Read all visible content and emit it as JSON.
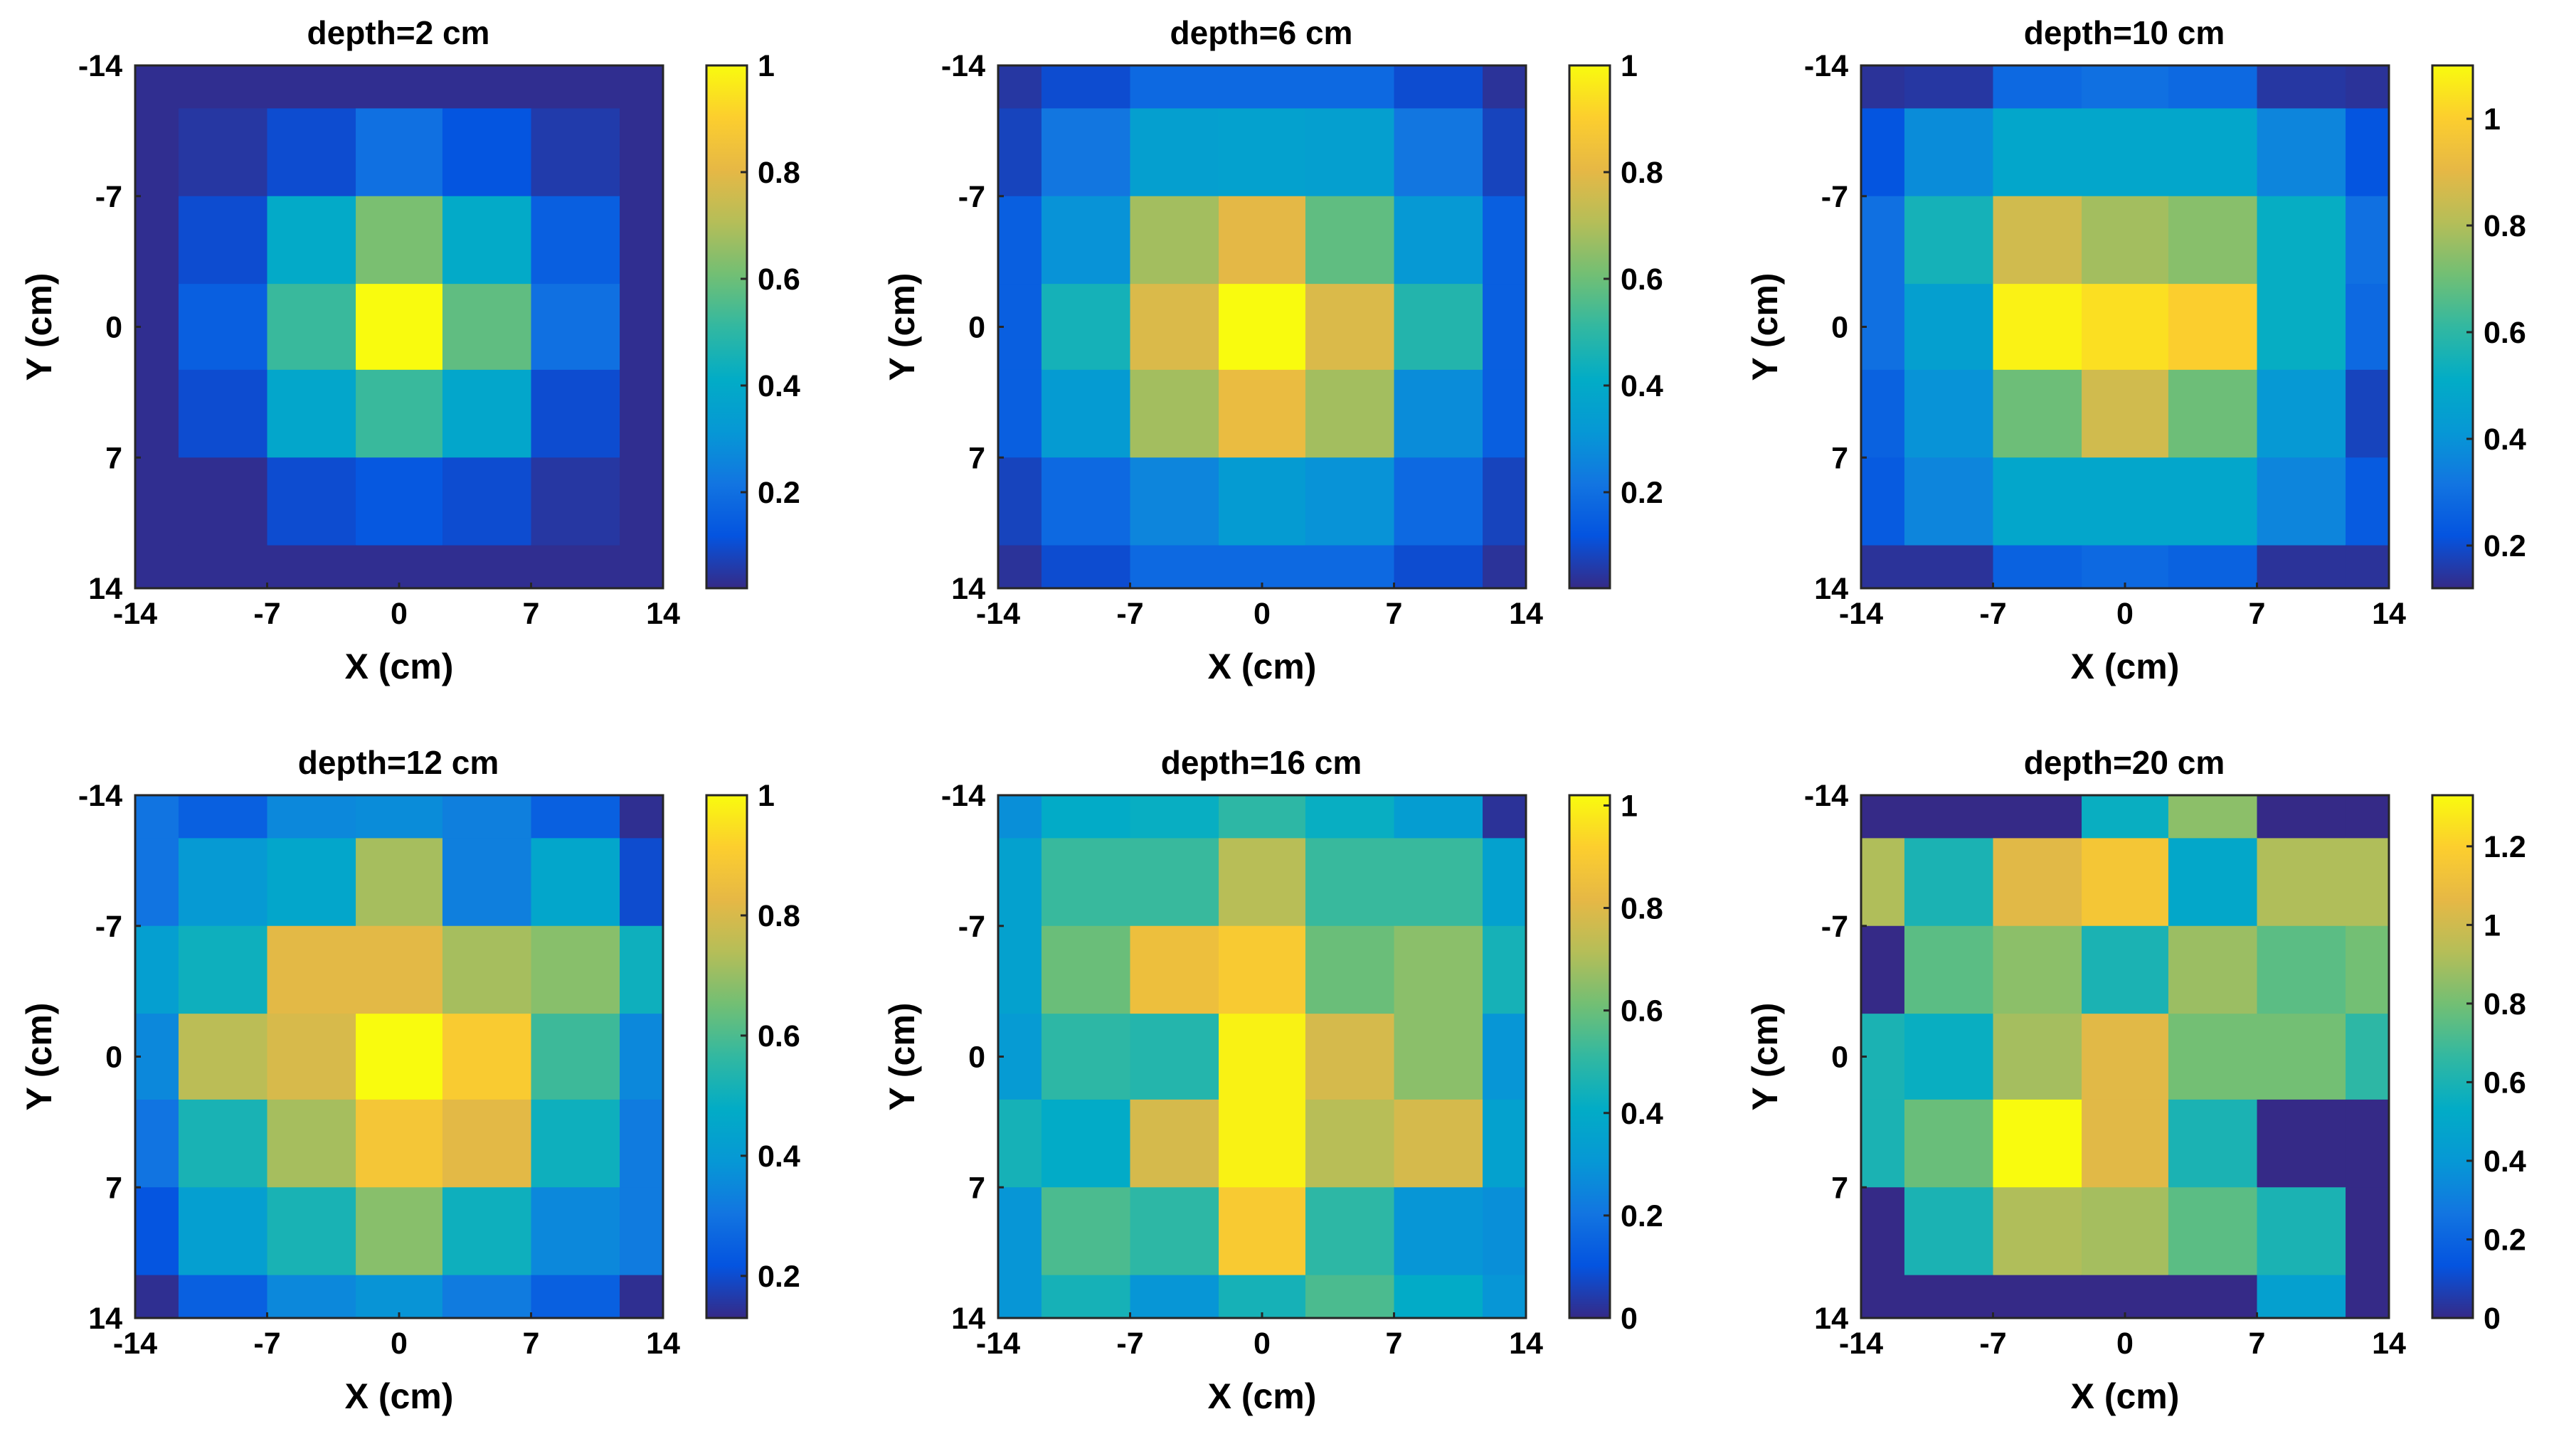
{
  "chart_data": [
    {
      "type": "heatmap",
      "title": "depth=2 cm",
      "xlabel": "X (cm)",
      "ylabel": "Y (cm)",
      "xlim": [
        -14,
        14
      ],
      "ylim": [
        -14,
        14
      ],
      "x_ticks": [
        "-14",
        "-7",
        "0",
        "7",
        "14"
      ],
      "y_ticks": [
        "-14",
        "-7",
        "0",
        "7",
        "14"
      ],
      "cell_edges": [
        -14,
        -11.7,
        -7,
        -2.3,
        2.3,
        7,
        11.7,
        14
      ],
      "colorbar": {
        "min": 0.02,
        "max": 1.0,
        "ticks": [
          0.2,
          0.4,
          0.6,
          0.8,
          1
        ],
        "tick_labels": [
          "0.2",
          "0.4",
          "0.6",
          "0.8",
          "1"
        ]
      },
      "values": [
        [
          0.03,
          0.03,
          0.03,
          0.03,
          0.03,
          0.03,
          0.03
        ],
        [
          0.03,
          0.05,
          0.1,
          0.2,
          0.12,
          0.06,
          0.03
        ],
        [
          0.03,
          0.1,
          0.4,
          0.62,
          0.4,
          0.15,
          0.03
        ],
        [
          0.03,
          0.15,
          0.52,
          1.0,
          0.58,
          0.2,
          0.03
        ],
        [
          0.03,
          0.1,
          0.38,
          0.52,
          0.38,
          0.1,
          0.03
        ],
        [
          0.03,
          0.03,
          0.1,
          0.13,
          0.1,
          0.05,
          0.03
        ],
        [
          0.03,
          0.03,
          0.03,
          0.03,
          0.03,
          0.03,
          0.03
        ]
      ]
    },
    {
      "type": "heatmap",
      "title": "depth=6 cm",
      "xlabel": "X (cm)",
      "ylabel": "Y (cm)",
      "xlim": [
        -14,
        14
      ],
      "ylim": [
        -14,
        14
      ],
      "x_ticks": [
        "-14",
        "-7",
        "0",
        "7",
        "14"
      ],
      "y_ticks": [
        "-14",
        "-7",
        "0",
        "7",
        "14"
      ],
      "cell_edges": [
        -14,
        -11.7,
        -7,
        -2.3,
        2.3,
        7,
        11.7,
        14
      ],
      "colorbar": {
        "min": 0.02,
        "max": 1.0,
        "ticks": [
          0.2,
          0.4,
          0.6,
          0.8,
          1
        ],
        "tick_labels": [
          "0.2",
          "0.4",
          "0.6",
          "0.8",
          "1"
        ]
      },
      "values": [
        [
          0.05,
          0.1,
          0.18,
          0.18,
          0.18,
          0.1,
          0.04
        ],
        [
          0.08,
          0.22,
          0.35,
          0.36,
          0.35,
          0.22,
          0.08
        ],
        [
          0.15,
          0.3,
          0.68,
          0.8,
          0.58,
          0.32,
          0.15
        ],
        [
          0.15,
          0.45,
          0.78,
          1.0,
          0.78,
          0.48,
          0.15
        ],
        [
          0.15,
          0.33,
          0.68,
          0.82,
          0.68,
          0.28,
          0.15
        ],
        [
          0.08,
          0.18,
          0.26,
          0.33,
          0.3,
          0.18,
          0.08
        ],
        [
          0.04,
          0.1,
          0.18,
          0.18,
          0.18,
          0.1,
          0.04
        ]
      ]
    },
    {
      "type": "heatmap",
      "title": "depth=10 cm",
      "xlabel": "X (cm)",
      "ylabel": "Y (cm)",
      "xlim": [
        -14,
        14
      ],
      "ylim": [
        -14,
        14
      ],
      "x_ticks": [
        "-14",
        "-7",
        "0",
        "7",
        "14"
      ],
      "y_ticks": [
        "-14",
        "-7",
        "0",
        "7",
        "14"
      ],
      "cell_edges": [
        -14,
        -11.7,
        -7,
        -2.3,
        2.3,
        7,
        11.7,
        14
      ],
      "colorbar": {
        "min": 0.12,
        "max": 1.1,
        "ticks": [
          0.2,
          0.4,
          0.6,
          0.8,
          1
        ],
        "tick_labels": [
          "0.2",
          "0.4",
          "0.6",
          "0.8",
          "1"
        ]
      },
      "values": [
        [
          0.14,
          0.15,
          0.28,
          0.3,
          0.28,
          0.15,
          0.14
        ],
        [
          0.22,
          0.38,
          0.48,
          0.48,
          0.48,
          0.36,
          0.22
        ],
        [
          0.3,
          0.55,
          0.86,
          0.78,
          0.74,
          0.52,
          0.3
        ],
        [
          0.3,
          0.45,
          1.08,
          1.04,
          1.0,
          0.52,
          0.28
        ],
        [
          0.26,
          0.4,
          0.7,
          0.86,
          0.7,
          0.42,
          0.18
        ],
        [
          0.24,
          0.36,
          0.48,
          0.48,
          0.48,
          0.36,
          0.24
        ],
        [
          0.14,
          0.14,
          0.26,
          0.28,
          0.26,
          0.14,
          0.14
        ]
      ]
    },
    {
      "type": "heatmap",
      "title": "depth=12 cm",
      "xlabel": "X (cm)",
      "ylabel": "Y (cm)",
      "xlim": [
        -14,
        14
      ],
      "ylim": [
        -14,
        14
      ],
      "x_ticks": [
        "-14",
        "-7",
        "0",
        "7",
        "14"
      ],
      "y_ticks": [
        "-14",
        "-7",
        "0",
        "7",
        "14"
      ],
      "cell_edges": [
        -14,
        -11.7,
        -7,
        -2.3,
        2.3,
        7,
        11.7,
        14
      ],
      "colorbar": {
        "min": 0.13,
        "max": 1.0,
        "ticks": [
          0.2,
          0.4,
          0.6,
          0.8,
          1
        ],
        "tick_labels": [
          "0.2",
          "0.4",
          "0.6",
          "0.8",
          "1"
        ]
      },
      "values": [
        [
          0.3,
          0.25,
          0.35,
          0.36,
          0.33,
          0.25,
          0.14
        ],
        [
          0.3,
          0.4,
          0.45,
          0.72,
          0.33,
          0.45,
          0.2
        ],
        [
          0.42,
          0.5,
          0.82,
          0.82,
          0.72,
          0.68,
          0.5
        ],
        [
          0.35,
          0.75,
          0.8,
          1.0,
          0.9,
          0.58,
          0.35
        ],
        [
          0.3,
          0.52,
          0.72,
          0.88,
          0.82,
          0.5,
          0.32
        ],
        [
          0.22,
          0.42,
          0.52,
          0.68,
          0.5,
          0.35,
          0.32
        ],
        [
          0.14,
          0.25,
          0.35,
          0.38,
          0.32,
          0.25,
          0.14
        ]
      ]
    },
    {
      "type": "heatmap",
      "title": "depth=16 cm",
      "xlabel": "X (cm)",
      "ylabel": "Y (cm)",
      "xlim": [
        -14,
        14
      ],
      "ylim": [
        -14,
        14
      ],
      "x_ticks": [
        "-14",
        "-7",
        "0",
        "7",
        "14"
      ],
      "y_ticks": [
        "-14",
        "-7",
        "0",
        "7",
        "14"
      ],
      "cell_edges": [
        -14,
        -11.7,
        -7,
        -2.3,
        2.3,
        7,
        11.7,
        14
      ],
      "colorbar": {
        "min": 0.0,
        "max": 1.02,
        "ticks": [
          0,
          0.2,
          0.4,
          0.6,
          0.8,
          1
        ],
        "tick_labels": [
          "0",
          "0.2",
          "0.4",
          "0.6",
          "0.8",
          "1"
        ]
      },
      "values": [
        [
          0.28,
          0.4,
          0.42,
          0.5,
          0.42,
          0.33,
          0.02
        ],
        [
          0.35,
          0.52,
          0.52,
          0.72,
          0.52,
          0.52,
          0.35
        ],
        [
          0.35,
          0.6,
          0.85,
          0.9,
          0.6,
          0.65,
          0.45
        ],
        [
          0.32,
          0.5,
          0.48,
          1.0,
          0.78,
          0.65,
          0.3
        ],
        [
          0.45,
          0.4,
          0.78,
          1.0,
          0.72,
          0.78,
          0.35
        ],
        [
          0.3,
          0.55,
          0.5,
          0.9,
          0.5,
          0.3,
          0.28
        ],
        [
          0.3,
          0.45,
          0.3,
          0.45,
          0.55,
          0.4,
          0.3
        ]
      ]
    },
    {
      "type": "heatmap",
      "title": "depth=20 cm",
      "xlabel": "X (cm)",
      "ylabel": "Y (cm)",
      "xlim": [
        -14,
        14
      ],
      "ylim": [
        -14,
        14
      ],
      "x_ticks": [
        "-14",
        "-7",
        "0",
        "7",
        "14"
      ],
      "y_ticks": [
        "-14",
        "-7",
        "0",
        "7",
        "14"
      ],
      "cell_edges": [
        -14,
        -11.7,
        -7,
        -2.3,
        2.3,
        7,
        11.7,
        14
      ],
      "colorbar": {
        "min": 0.0,
        "max": 1.33,
        "ticks": [
          0,
          0.2,
          0.4,
          0.6,
          0.8,
          1,
          1.2
        ],
        "tick_labels": [
          "0",
          "0.2",
          "0.4",
          "0.6",
          "0.8",
          "1",
          "1.2"
        ]
      },
      "values": [
        [
          0.0,
          0.0,
          0.0,
          0.55,
          0.85,
          0.0,
          0.0
        ],
        [
          0.92,
          0.6,
          1.05,
          1.15,
          0.5,
          0.92,
          0.92
        ],
        [
          0.0,
          0.75,
          0.85,
          0.6,
          0.88,
          0.75,
          0.8
        ],
        [
          0.6,
          0.55,
          0.9,
          1.05,
          0.8,
          0.8,
          0.65
        ],
        [
          0.6,
          0.78,
          1.33,
          1.05,
          0.6,
          0.0,
          0.0
        ],
        [
          0.0,
          0.6,
          0.92,
          0.9,
          0.75,
          0.6,
          0.0
        ],
        [
          0.0,
          0.0,
          0.0,
          0.0,
          0.0,
          0.45,
          0.0
        ]
      ]
    }
  ]
}
